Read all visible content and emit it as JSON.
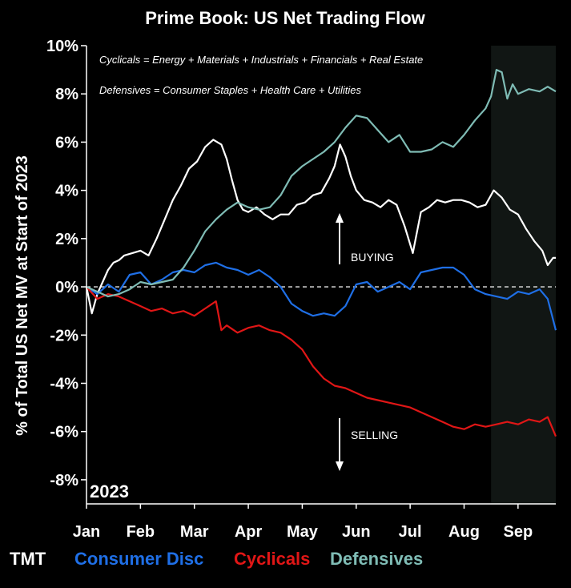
{
  "chart_data": {
    "type": "line",
    "title": "Prime Book: US Net Trading Flow",
    "ylabel": "% of Total US Net MV at Start of 2023",
    "xlabel": "",
    "ylim": [
      -9,
      10
    ],
    "yticks": [
      10,
      8,
      6,
      4,
      2,
      0,
      -2,
      -4,
      -6,
      -8
    ],
    "ytick_labels": [
      "10%",
      "8%",
      "6%",
      "4%",
      "2%",
      "0%",
      "-2%",
      "-4%",
      "-6%",
      "-8%"
    ],
    "xlim": [
      0,
      8.7
    ],
    "xticks": [
      0,
      1,
      2,
      3,
      4,
      5,
      6,
      7,
      8
    ],
    "xtick_labels": [
      "Jan",
      "Feb",
      "Mar",
      "Apr",
      "May",
      "Jun",
      "Jul",
      "Aug",
      "Sep"
    ],
    "year_label": "2023",
    "shaded_region": [
      7.5,
      8.7
    ],
    "zero_line": "dashed",
    "legend_position": "bottom",
    "annotations": [
      {
        "text": "Cyclicals = Energy + Materials + Industrials + Financials + Real Estate"
      },
      {
        "text": "Defensives = Consumer Staples + Health Care + Utilities"
      },
      {
        "text": "BUYING"
      },
      {
        "text": "SELLING"
      }
    ],
    "colors": {
      "TMT": "#ffffff",
      "Consumer Disc": "#1f6fe6",
      "Cyclicals": "#e01616",
      "Defensives": "#7fbcb5"
    },
    "series": [
      {
        "name": "TMT",
        "color": "#ffffff",
        "x": [
          0,
          0.1,
          0.2,
          0.3,
          0.4,
          0.5,
          0.6,
          0.7,
          0.85,
          1.0,
          1.15,
          1.3,
          1.45,
          1.6,
          1.75,
          1.9,
          2.05,
          2.2,
          2.35,
          2.5,
          2.6,
          2.7,
          2.8,
          2.9,
          3.0,
          3.15,
          3.3,
          3.45,
          3.6,
          3.75,
          3.9,
          4.05,
          4.2,
          4.35,
          4.5,
          4.6,
          4.7,
          4.8,
          4.9,
          5.0,
          5.15,
          5.3,
          5.45,
          5.6,
          5.75,
          5.9,
          6.05,
          6.2,
          6.35,
          6.5,
          6.65,
          6.8,
          6.95,
          7.1,
          7.25,
          7.4,
          7.55,
          7.7,
          7.85,
          8.0,
          8.15,
          8.3,
          8.45,
          8.55,
          8.65,
          8.7
        ],
        "y": [
          0,
          -1.1,
          -0.3,
          0.2,
          0.7,
          1.0,
          1.1,
          1.3,
          1.4,
          1.5,
          1.3,
          2.0,
          2.8,
          3.6,
          4.2,
          4.9,
          5.2,
          5.8,
          6.1,
          5.9,
          5.3,
          4.4,
          3.6,
          3.2,
          3.1,
          3.3,
          3.0,
          2.8,
          3.0,
          3.0,
          3.4,
          3.5,
          3.8,
          3.9,
          4.5,
          5.0,
          5.9,
          5.4,
          4.6,
          4.0,
          3.6,
          3.5,
          3.3,
          3.6,
          3.4,
          2.5,
          1.4,
          3.1,
          3.3,
          3.6,
          3.5,
          3.6,
          3.6,
          3.5,
          3.3,
          3.4,
          4.0,
          3.7,
          3.2,
          3.0,
          2.4,
          1.9,
          1.5,
          0.9,
          1.2,
          1.2
        ]
      },
      {
        "name": "Consumer Disc",
        "color": "#1f6fe6",
        "x": [
          0,
          0.2,
          0.4,
          0.6,
          0.8,
          1.0,
          1.2,
          1.4,
          1.6,
          1.8,
          2.0,
          2.2,
          2.4,
          2.6,
          2.8,
          3.0,
          3.2,
          3.4,
          3.6,
          3.8,
          4.0,
          4.2,
          4.4,
          4.6,
          4.8,
          5.0,
          5.2,
          5.4,
          5.6,
          5.8,
          6.0,
          6.2,
          6.4,
          6.6,
          6.8,
          7.0,
          7.2,
          7.4,
          7.6,
          7.8,
          8.0,
          8.2,
          8.4,
          8.55,
          8.7
        ],
        "y": [
          0,
          -0.3,
          0.1,
          -0.2,
          0.5,
          0.6,
          0.1,
          0.3,
          0.6,
          0.7,
          0.6,
          0.9,
          1.0,
          0.8,
          0.7,
          0.5,
          0.7,
          0.4,
          0.0,
          -0.7,
          -1.0,
          -1.2,
          -1.1,
          -1.2,
          -0.8,
          0.1,
          0.2,
          -0.2,
          0.0,
          0.2,
          -0.1,
          0.6,
          0.7,
          0.8,
          0.8,
          0.5,
          -0.1,
          -0.3,
          -0.4,
          -0.5,
          -0.2,
          -0.3,
          -0.1,
          -0.5,
          -1.8
        ]
      },
      {
        "name": "Cyclicals",
        "color": "#e01616",
        "x": [
          0,
          0.2,
          0.4,
          0.6,
          0.8,
          1.0,
          1.2,
          1.4,
          1.6,
          1.8,
          2.0,
          2.2,
          2.4,
          2.5,
          2.6,
          2.8,
          3.0,
          3.2,
          3.4,
          3.6,
          3.8,
          4.0,
          4.2,
          4.4,
          4.6,
          4.8,
          5.0,
          5.2,
          5.4,
          5.6,
          5.8,
          6.0,
          6.2,
          6.4,
          6.6,
          6.8,
          7.0,
          7.2,
          7.4,
          7.6,
          7.8,
          8.0,
          8.2,
          8.4,
          8.55,
          8.7
        ],
        "y": [
          0,
          -0.5,
          -0.3,
          -0.4,
          -0.6,
          -0.8,
          -1.0,
          -0.9,
          -1.1,
          -1.0,
          -1.2,
          -0.9,
          -0.6,
          -1.8,
          -1.6,
          -1.9,
          -1.7,
          -1.6,
          -1.8,
          -1.9,
          -2.2,
          -2.6,
          -3.3,
          -3.8,
          -4.1,
          -4.2,
          -4.4,
          -4.6,
          -4.7,
          -4.8,
          -4.9,
          -5.0,
          -5.2,
          -5.4,
          -5.6,
          -5.8,
          -5.9,
          -5.7,
          -5.8,
          -5.7,
          -5.6,
          -5.7,
          -5.5,
          -5.6,
          -5.4,
          -6.2
        ]
      },
      {
        "name": "Defensives",
        "color": "#7fbcb5",
        "x": [
          0,
          0.2,
          0.4,
          0.6,
          0.8,
          1.0,
          1.2,
          1.4,
          1.6,
          1.8,
          2.0,
          2.2,
          2.4,
          2.6,
          2.8,
          3.0,
          3.2,
          3.4,
          3.6,
          3.8,
          4.0,
          4.2,
          4.4,
          4.6,
          4.8,
          5.0,
          5.2,
          5.4,
          5.6,
          5.8,
          6.0,
          6.2,
          6.4,
          6.6,
          6.8,
          7.0,
          7.2,
          7.4,
          7.5,
          7.6,
          7.7,
          7.8,
          7.9,
          8.0,
          8.2,
          8.4,
          8.55,
          8.7
        ],
        "y": [
          0,
          -0.2,
          -0.4,
          -0.3,
          -0.1,
          0.2,
          0.1,
          0.2,
          0.3,
          0.8,
          1.5,
          2.3,
          2.8,
          3.2,
          3.5,
          3.3,
          3.2,
          3.3,
          3.8,
          4.6,
          5.0,
          5.3,
          5.6,
          6.0,
          6.6,
          7.1,
          7.0,
          6.5,
          6.0,
          6.3,
          5.6,
          5.6,
          5.7,
          6.0,
          5.8,
          6.3,
          6.9,
          7.4,
          7.9,
          9.0,
          8.9,
          7.8,
          8.4,
          8.0,
          8.2,
          8.1,
          8.3,
          8.1
        ]
      }
    ]
  }
}
